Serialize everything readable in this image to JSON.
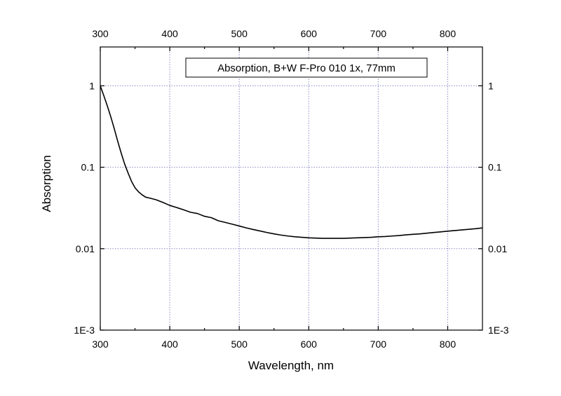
{
  "chart_data": {
    "type": "line",
    "title": "Absorption, B+W F-Pro 010 1x, 77mm",
    "xlabel": "Wavelength, nm",
    "ylabel": "Absorption",
    "xlim": [
      300,
      850
    ],
    "ylim": [
      0.001,
      3
    ],
    "yscale": "log",
    "grid": true,
    "legend_position": "top-center",
    "x_ticks": [
      300,
      400,
      500,
      600,
      700,
      800
    ],
    "x_tick_labels": [
      "300",
      "400",
      "500",
      "600",
      "700",
      "800"
    ],
    "y_ticks": [
      0.001,
      0.01,
      0.1,
      1
    ],
    "y_tick_labels": [
      "1E-3",
      "0.01",
      "0.1",
      "1"
    ],
    "line_color": "#000000",
    "grid_color": "#8a8ac8",
    "series": [
      {
        "x": [
          300,
          305,
          310,
          315,
          320,
          325,
          330,
          335,
          340,
          345,
          350,
          355,
          360,
          365,
          370,
          375,
          380,
          390,
          400,
          410,
          420,
          430,
          440,
          450,
          460,
          470,
          480,
          490,
          500,
          510,
          520,
          530,
          540,
          550,
          560,
          570,
          580,
          590,
          600,
          610,
          620,
          630,
          640,
          650,
          660,
          670,
          680,
          690,
          700,
          710,
          720,
          730,
          740,
          750,
          760,
          770,
          780,
          790,
          800,
          810,
          820,
          830,
          840,
          850
        ],
        "y": [
          1.0,
          0.76,
          0.57,
          0.42,
          0.3,
          0.21,
          0.15,
          0.11,
          0.085,
          0.067,
          0.056,
          0.05,
          0.046,
          0.043,
          0.042,
          0.041,
          0.04,
          0.037,
          0.034,
          0.032,
          0.03,
          0.028,
          0.027,
          0.025,
          0.024,
          0.022,
          0.021,
          0.02,
          0.019,
          0.018,
          0.0172,
          0.0165,
          0.0158,
          0.0152,
          0.0147,
          0.0143,
          0.014,
          0.0138,
          0.0136,
          0.0135,
          0.0134,
          0.0134,
          0.0134,
          0.0134,
          0.0135,
          0.0136,
          0.0137,
          0.0138,
          0.014,
          0.0141,
          0.0143,
          0.0145,
          0.0148,
          0.015,
          0.0152,
          0.0155,
          0.0158,
          0.0161,
          0.0164,
          0.0167,
          0.017,
          0.0173,
          0.0176,
          0.018
        ]
      }
    ]
  }
}
